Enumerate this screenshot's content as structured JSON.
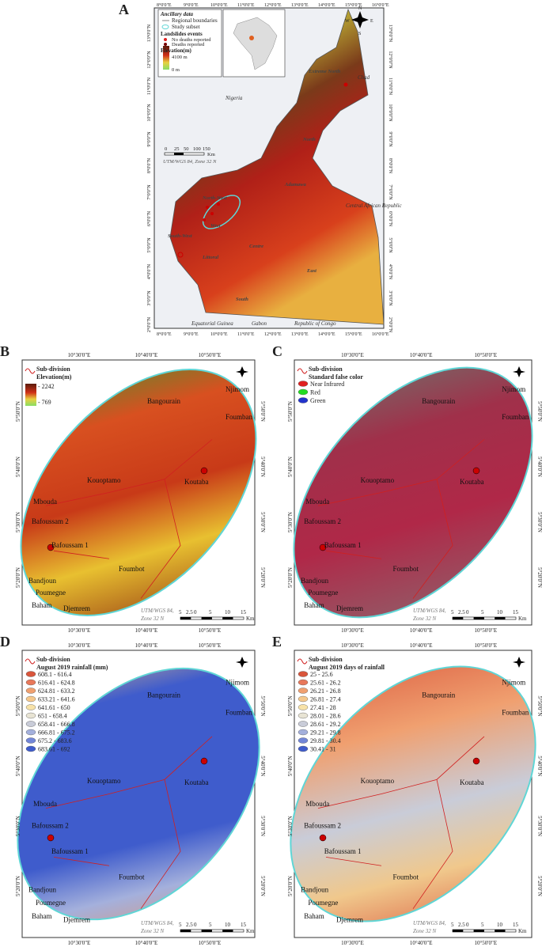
{
  "overview": {
    "letter": "A",
    "legend": {
      "ancillary_title": "Ancillary data",
      "boundaries": "Regional boundaries",
      "subset": "Study subset",
      "events_title": "Landslides events",
      "no_deaths": "No deaths reported",
      "deaths": "Deaths reported",
      "elevation_title": "Elevation(m)",
      "elev_high": "4100 m",
      "elev_low": "0 m"
    },
    "regions": [
      "Extreme North",
      "North",
      "Adamawa",
      "North-West",
      "West",
      "South-West",
      "Littoral",
      "Centre",
      "East",
      "South"
    ],
    "countries": [
      "Nigeria",
      "Chad",
      "Central African Republic",
      "Equatorial Guinea",
      "Gabon",
      "Republic of Congo"
    ],
    "scale_labels": [
      "0",
      "25",
      "50",
      "100",
      "150"
    ],
    "scale_unit": "Km",
    "projection": "UTM/WGS 84, Zone 32 N",
    "xticks": [
      "8°0'0\"E",
      "9°0'0\"E",
      "10°0'0\"E",
      "11°0'0\"E",
      "12°0'0\"E",
      "13°0'0\"E",
      "14°0'0\"E",
      "15°0'0\"E",
      "16°0'0\"E"
    ],
    "yticks": [
      "13°0'0\"N",
      "12°0'0\"N",
      "11°0'0\"N",
      "10°0'0\"N",
      "9°0'0\"N",
      "8°0'0\"N",
      "7°0'0\"N",
      "6°0'0\"N",
      "5°0'0\"N",
      "4°0'0\"N",
      "3°0'0\"N",
      "2°0'0\"N"
    ],
    "compass": [
      "N",
      "E",
      "S",
      "W"
    ]
  },
  "detail": {
    "xticks": [
      "10°30'0\"E",
      "10°40'0\"E",
      "10°50'0\"E"
    ],
    "yticks": [
      "5°50'0\"N",
      "5°40'0\"N",
      "5°30'0\"N",
      "5°20'0\"N"
    ],
    "places": [
      "Njimom",
      "Bangourain",
      "Foumban",
      "Kouoptamo",
      "Koutaba",
      "Mbouda",
      "Bafoussam 2",
      "Bafoussam 1",
      "Foumbot",
      "Bandjoun",
      "Poumegne",
      "Baham",
      "Djemrem"
    ],
    "scale_labels": [
      "5",
      "2.5",
      "0",
      "5",
      "10",
      "15"
    ],
    "scale_unit": "Km",
    "projection": [
      "UTM/WGS 84,",
      "Zone 32 N"
    ]
  },
  "panels": [
    {
      "letter": "B",
      "subdivision": "Sub-division",
      "legend_title": "Elevation(m)",
      "ramp": [
        "- 2242",
        "- 769"
      ]
    },
    {
      "letter": "C",
      "subdivision": "Sub-division",
      "legend_title": "Standard false color",
      "items": [
        {
          "label": "Near Infrared",
          "color": "#e02020"
        },
        {
          "label": "Red",
          "color": "#22dd22"
        },
        {
          "label": "Green",
          "color": "#2233cc"
        }
      ]
    },
    {
      "letter": "D",
      "subdivision": "Sub-division",
      "legend_title": "August 2019 rainfall (mm)",
      "items": [
        {
          "label": "608.1 - 616.4",
          "color": "#d9553b"
        },
        {
          "label": "616.41 - 624.8",
          "color": "#e8785a"
        },
        {
          "label": "624.81 - 633.2",
          "color": "#f0a070"
        },
        {
          "label": "633.21 - 641.6",
          "color": "#f5c88c"
        },
        {
          "label": "641.61 - 650",
          "color": "#f7e2a8"
        },
        {
          "label": "651 - 658.4",
          "color": "#e8e4d4"
        },
        {
          "label": "658.41 - 666.8",
          "color": "#c9ccd8"
        },
        {
          "label": "666.81 - 675.2",
          "color": "#a4b0dc"
        },
        {
          "label": "675.2 - 683.6",
          "color": "#7286d8"
        },
        {
          "label": "683.61 - 692",
          "color": "#3f5ccc"
        }
      ]
    },
    {
      "letter": "E",
      "subdivision": "Sub-division",
      "legend_title": "August 2019 days of rainfall",
      "items": [
        {
          "label": "25 - 25.6",
          "color": "#d9553b"
        },
        {
          "label": "25.61 - 26.2",
          "color": "#e8785a"
        },
        {
          "label": "26.21 - 26.8",
          "color": "#f0a070"
        },
        {
          "label": "26.81 - 27.4",
          "color": "#f5c88c"
        },
        {
          "label": "27.41 - 28",
          "color": "#f7e2a8"
        },
        {
          "label": "28.01 - 28.6",
          "color": "#e8e4d4"
        },
        {
          "label": "28.61 - 29.2",
          "color": "#c9ccd8"
        },
        {
          "label": "29.21 - 29.8",
          "color": "#a4b0dc"
        },
        {
          "label": "29.81 - 30.4",
          "color": "#7286d8"
        },
        {
          "label": "30.41 - 31",
          "color": "#3f5ccc"
        }
      ]
    }
  ]
}
